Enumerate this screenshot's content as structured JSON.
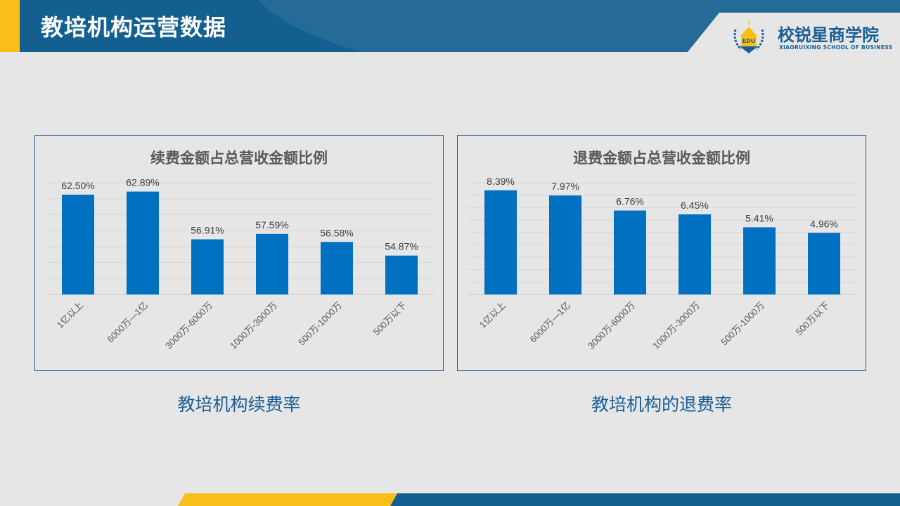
{
  "header": {
    "title": "教培机构运营数据"
  },
  "logo": {
    "name_cn": "校锐星商学院",
    "name_en": "XIAORUIXING SCHOOL OF BUSINESS",
    "emblem_text": "EDU"
  },
  "colors": {
    "header_blue": "#135f8f",
    "accent_yellow": "#f9bf18",
    "bar_blue": "#0070c0"
  },
  "captions": {
    "left": "教培机构续费率",
    "right": "教培机构的退费率"
  },
  "chart_data": [
    {
      "type": "bar",
      "title": "续费金额占总营收金额比例",
      "categories": [
        "1亿以上",
        "6000万—1亿",
        "3000万-6000万",
        "1000万-3000万",
        "500万-1000万",
        "500万以下"
      ],
      "values": [
        62.5,
        62.89,
        56.91,
        57.59,
        56.58,
        54.87
      ],
      "labels": [
        "62.50%",
        "62.89%",
        "56.91%",
        "57.59%",
        "56.58%",
        "54.87%"
      ],
      "ylim": [
        50,
        64
      ],
      "grid_step": 2,
      "grid": true,
      "xlabel": "",
      "ylabel": ""
    },
    {
      "type": "bar",
      "title": "退费金额占总营收金额比例",
      "categories": [
        "1亿以上",
        "6000万—1亿",
        "3000万-6000万",
        "1000万-3000万",
        "500万-1000万",
        "500万以下"
      ],
      "values": [
        8.39,
        7.97,
        6.76,
        6.45,
        5.41,
        4.96
      ],
      "labels": [
        "8.39%",
        "7.97%",
        "6.76%",
        "6.45%",
        "5.41%",
        "4.96%"
      ],
      "ylim": [
        0,
        9
      ],
      "grid_step": 1,
      "grid": true,
      "xlabel": "",
      "ylabel": ""
    }
  ]
}
